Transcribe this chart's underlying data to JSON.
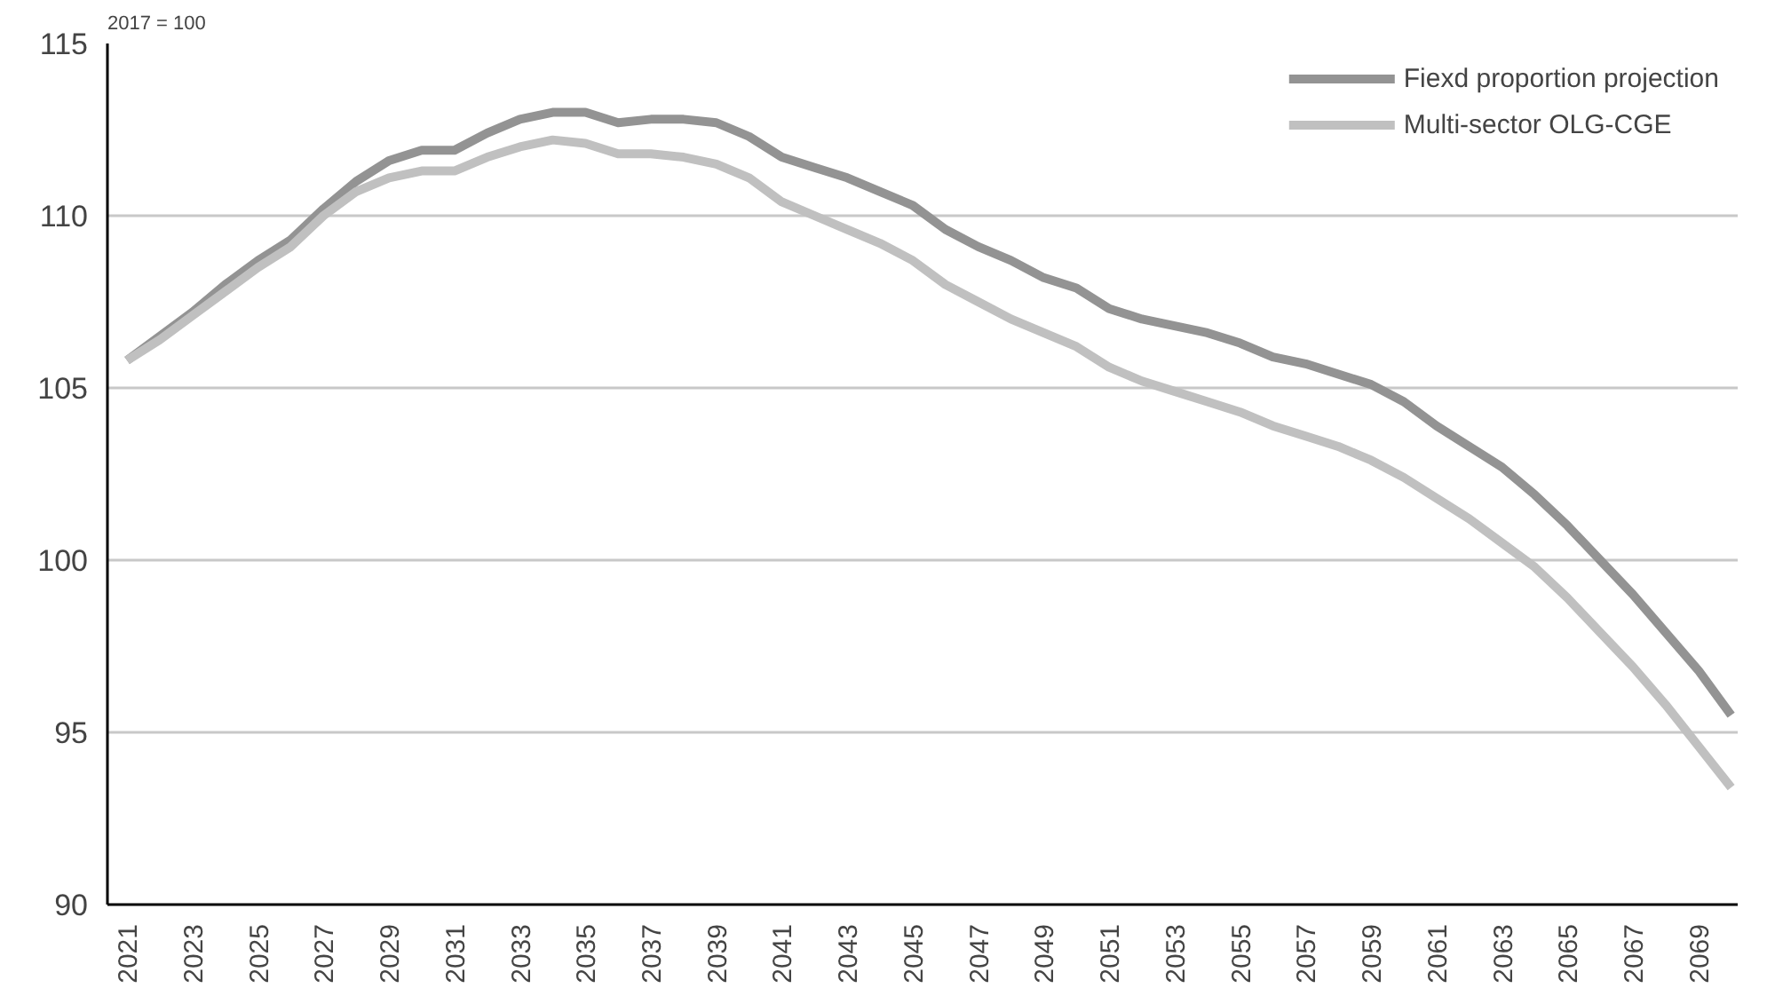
{
  "chart_data": {
    "type": "line",
    "ylabel": "2017 = 100",
    "categories": [
      "2021",
      null,
      "2023",
      null,
      "2025",
      null,
      "2027",
      null,
      "2029",
      null,
      "2031",
      null,
      "2033",
      null,
      "2035",
      null,
      "2037",
      null,
      "2039",
      null,
      "2041",
      null,
      "2043",
      null,
      "2045",
      null,
      "2047",
      null,
      "2049",
      null,
      "2051",
      null,
      "2053",
      null,
      "2055",
      null,
      "2057",
      null,
      "2059",
      null,
      "2061",
      null,
      "2063",
      null,
      "2065",
      null,
      "2067",
      null,
      "2069",
      null
    ],
    "series": [
      {
        "name": "Fiexd proportion projection",
        "color": "#939393",
        "values": [
          105.8,
          106.5,
          107.2,
          108.0,
          108.7,
          109.3,
          110.2,
          111.0,
          111.6,
          111.9,
          111.9,
          112.4,
          112.8,
          113.0,
          113.0,
          112.7,
          112.8,
          112.8,
          112.7,
          112.3,
          111.7,
          111.4,
          111.1,
          110.7,
          110.3,
          109.6,
          109.1,
          108.7,
          108.2,
          107.9,
          107.3,
          107.0,
          106.8,
          106.6,
          106.3,
          105.9,
          105.7,
          105.4,
          105.1,
          104.6,
          103.9,
          103.3,
          102.7,
          101.9,
          101.0,
          100.0,
          99.0,
          97.9,
          96.8,
          95.5
        ]
      },
      {
        "name": "Multi-sector OLG-CGE",
        "color": "#c0c0c0",
        "values": [
          105.8,
          106.4,
          107.1,
          107.8,
          108.5,
          109.1,
          110.0,
          110.7,
          111.1,
          111.3,
          111.3,
          111.7,
          112.0,
          112.2,
          112.1,
          111.8,
          111.8,
          111.7,
          111.5,
          111.1,
          110.4,
          110.0,
          109.6,
          109.2,
          108.7,
          108.0,
          107.5,
          107.0,
          106.6,
          106.2,
          105.6,
          105.2,
          104.9,
          104.6,
          104.3,
          103.9,
          103.6,
          103.3,
          102.9,
          102.4,
          101.8,
          101.2,
          100.5,
          99.8,
          98.9,
          97.9,
          96.9,
          95.8,
          94.6,
          93.4
        ]
      }
    ],
    "ylim": [
      90,
      115
    ],
    "yticks": [
      90,
      95,
      100,
      105,
      110,
      115
    ],
    "grid": "y",
    "legend": "top right",
    "marker": "none",
    "line_style": "solid"
  }
}
